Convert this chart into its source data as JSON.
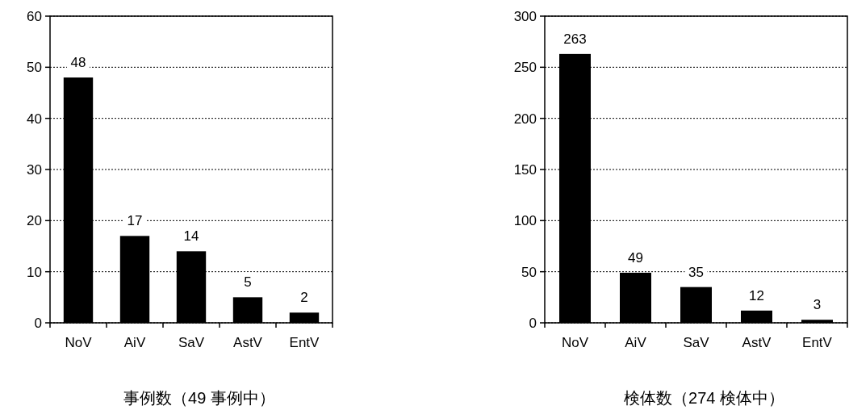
{
  "chart_data": [
    {
      "type": "bar",
      "categories": [
        "NoV",
        "AiV",
        "SaV",
        "AstV",
        "EntV"
      ],
      "series": [
        {
          "color": "#000000",
          "values": [
            48,
            17,
            14,
            5,
            2
          ]
        }
      ],
      "ylim": [
        0,
        60
      ],
      "yticks": [
        0,
        10,
        20,
        30,
        40,
        50,
        60
      ],
      "grid": "y",
      "data_labels": true,
      "xlabel": "事例数（49 事例中）",
      "line_style": "dotted"
    },
    {
      "type": "bar",
      "categories": [
        "NoV",
        "AiV",
        "SaV",
        "AstV",
        "EntV"
      ],
      "series": [
        {
          "color": "#000000",
          "values": [
            263,
            49,
            35,
            12,
            3
          ]
        }
      ],
      "ylim": [
        0,
        300
      ],
      "yticks": [
        0,
        50,
        100,
        150,
        200,
        250,
        300
      ],
      "grid": "y",
      "data_labels": true,
      "xlabel": "検体数（274 検体中）",
      "line_style": "dotted"
    }
  ]
}
